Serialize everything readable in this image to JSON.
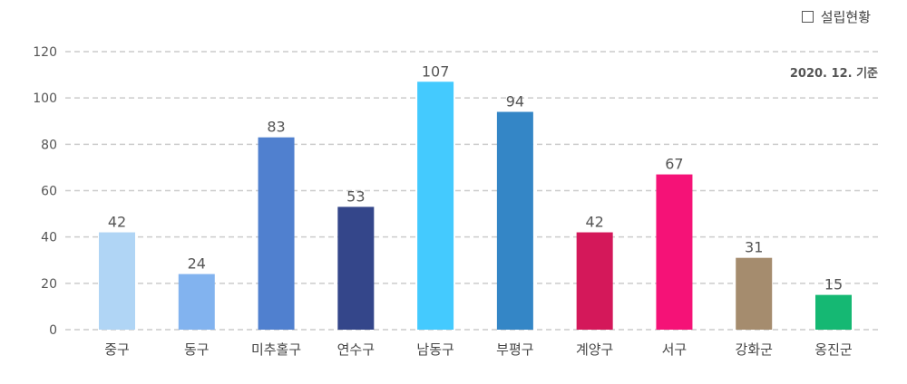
{
  "legend": {
    "label": "설립현황"
  },
  "note": "2020. 12. 기준",
  "chart_data": {
    "type": "bar",
    "categories": [
      "중구",
      "동구",
      "미추홀구",
      "연수구",
      "남동구",
      "부평구",
      "계양구",
      "서구",
      "강화군",
      "옹진군"
    ],
    "values": [
      42,
      24,
      83,
      53,
      107,
      94,
      42,
      67,
      31,
      15
    ],
    "colors": [
      "#b0d5f5",
      "#82b3ef",
      "#5080cf",
      "#34468a",
      "#44cafe",
      "#3486c6",
      "#d4185a",
      "#f51277",
      "#a58c6e",
      "#15b873"
    ],
    "ylim": [
      0,
      120
    ],
    "yticks": [
      0,
      20,
      40,
      60,
      80,
      100,
      120
    ],
    "grid": true,
    "legend_position": "top-right"
  }
}
